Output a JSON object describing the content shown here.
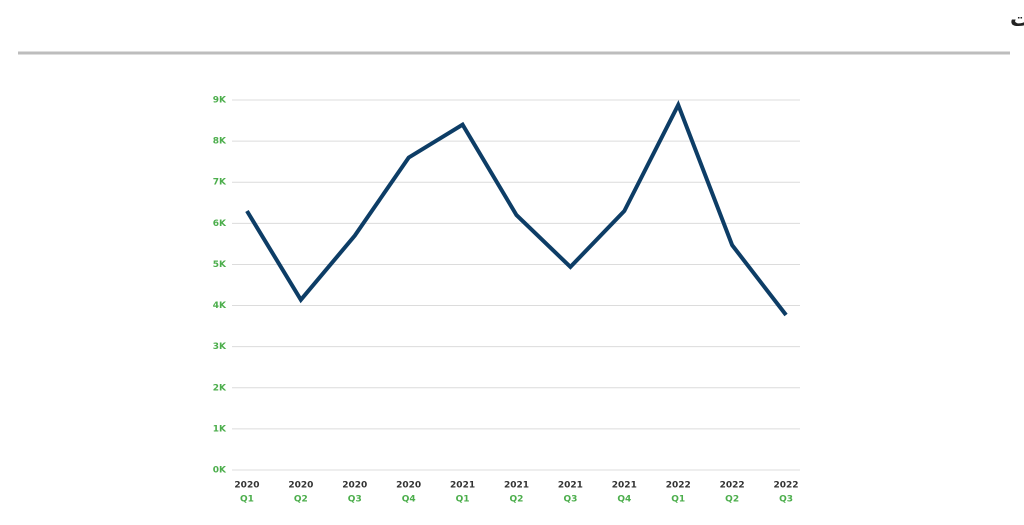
{
  "chart_data": {
    "type": "line",
    "title": "عدد الصفقات",
    "categories": [
      [
        "2020",
        "Q1"
      ],
      [
        "2020",
        "Q2"
      ],
      [
        "2020",
        "Q3"
      ],
      [
        "2020",
        "Q4"
      ],
      [
        "2021",
        "Q1"
      ],
      [
        "2021",
        "Q2"
      ],
      [
        "2021",
        "Q3"
      ],
      [
        "2021",
        "Q4"
      ],
      [
        "2022",
        "Q1"
      ],
      [
        "2022",
        "Q2"
      ],
      [
        "2022",
        "Q3"
      ]
    ],
    "values": [
      6300,
      4140,
      5700,
      7600,
      8400,
      6200,
      4940,
      6300,
      8880,
      5470,
      3770
    ],
    "color": "#0d3d66",
    "ylim": [
      0,
      9000
    ],
    "yticks": [
      {
        "value": 0,
        "label": "0K"
      },
      {
        "value": 1000,
        "label": "1K"
      },
      {
        "value": 2000,
        "label": "2K"
      },
      {
        "value": 3000,
        "label": "3K"
      },
      {
        "value": 4000,
        "label": "4K"
      },
      {
        "value": 5000,
        "label": "5K"
      },
      {
        "value": 6000,
        "label": "6K"
      },
      {
        "value": 7000,
        "label": "7K"
      },
      {
        "value": 8000,
        "label": "8K"
      },
      {
        "value": 9000,
        "label": "9K"
      }
    ],
    "grid": true
  }
}
